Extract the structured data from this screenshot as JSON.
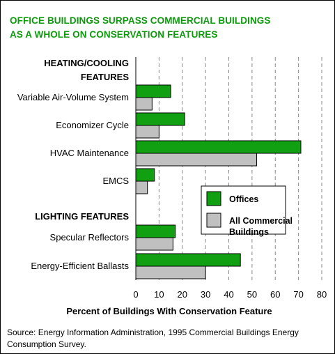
{
  "title_line1": "OFFICE BUILDINGS SURPASS COMMERCIAL BUILDINGS",
  "title_line2": "AS A WHOLE ON CONSERVATION FEATURES",
  "source": "Source:  Energy Information Administration, 1995 Commercial Buildings Energy Consumption Survey.",
  "colors": {
    "offices": "#11a011",
    "all_commercial": "#c0c0c0",
    "title": "#0c9a0c"
  },
  "chart_data": {
    "type": "bar",
    "orientation": "horizontal",
    "xlabel": "Percent of Buildings With Conservation Feature",
    "xlim": [
      0,
      80
    ],
    "xticks": [
      0,
      10,
      20,
      30,
      40,
      50,
      60,
      70,
      80
    ],
    "grid": true,
    "legend_position": "right",
    "group_headers": [
      {
        "lines": [
          "HEATING/COOLING",
          "FEATURES"
        ]
      },
      {
        "lines": [
          "LIGHTING FEATURES"
        ]
      }
    ],
    "categories": [
      "Variable Air-Volume System",
      "Economizer Cycle",
      "HVAC Maintenance",
      "EMCS",
      "Specular Reflectors",
      "Energy-Efficient Ballasts"
    ],
    "series": [
      {
        "name": "Offices",
        "values": [
          15,
          21,
          71,
          8,
          17,
          45
        ]
      },
      {
        "name": "All Commercial Buildings",
        "values": [
          7,
          10,
          52,
          5,
          16,
          30
        ]
      }
    ],
    "legend_labels": [
      [
        "Offices"
      ],
      [
        "All Commercial",
        "Buildings"
      ]
    ]
  }
}
